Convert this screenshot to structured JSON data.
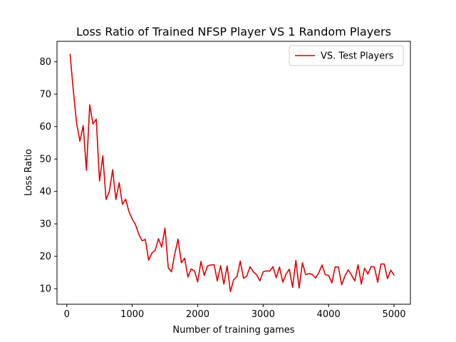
{
  "chart_data": {
    "type": "line",
    "title": "Loss Ratio of Trained NFSP Player VS 1 Random Players",
    "xlabel": "Number of training games",
    "ylabel": "Loss Ratio",
    "xlim": [
      -150,
      5250
    ],
    "ylim": [
      5.2,
      86.3
    ],
    "xticks": [
      0,
      1000,
      2000,
      3000,
      4000,
      5000
    ],
    "yticks": [
      10,
      20,
      30,
      40,
      50,
      60,
      70,
      80
    ],
    "grid": false,
    "legend": {
      "position": "upper right"
    },
    "series": [
      {
        "name": "VS. Test Players",
        "color": "#dd0000",
        "x": [
          50,
          100,
          150,
          200,
          250,
          300,
          350,
          400,
          450,
          500,
          550,
          600,
          650,
          700,
          750,
          800,
          850,
          900,
          950,
          1000,
          1050,
          1100,
          1150,
          1200,
          1250,
          1300,
          1350,
          1400,
          1450,
          1500,
          1550,
          1600,
          1650,
          1700,
          1750,
          1800,
          1850,
          1900,
          1950,
          2000,
          2050,
          2100,
          2150,
          2200,
          2250,
          2300,
          2350,
          2400,
          2450,
          2500,
          2550,
          2600,
          2650,
          2700,
          2750,
          2800,
          2850,
          2900,
          2950,
          3000,
          3050,
          3100,
          3150,
          3200,
          3250,
          3300,
          3350,
          3400,
          3450,
          3500,
          3550,
          3600,
          3650,
          3700,
          3750,
          3800,
          3850,
          3900,
          3950,
          4000,
          4050,
          4100,
          4150,
          4200,
          4250,
          4300,
          4350,
          4400,
          4450,
          4500,
          4550,
          4600,
          4650,
          4700,
          4750,
          4800,
          4850,
          4900,
          4950,
          5000
        ],
        "y": [
          82.3,
          71,
          61,
          55.5,
          60.3,
          46.5,
          66.7,
          60.8,
          62.3,
          43.2,
          51,
          37.5,
          40,
          46.7,
          37.5,
          42.7,
          36,
          37.6,
          33.7,
          31.5,
          29.7,
          26.8,
          24.8,
          25.2,
          18.8,
          21,
          21.8,
          25.4,
          22.8,
          28.7,
          16.5,
          15.2,
          20.8,
          25.3,
          18,
          19.4,
          13.6,
          16.1,
          15.5,
          12.1,
          18.4,
          14.1,
          17,
          17.3,
          17.4,
          12.4,
          17.1,
          11.4,
          17,
          9.1,
          12.8,
          13.7,
          18.5,
          13.2,
          13.9,
          16.8,
          15.2,
          14.3,
          12.4,
          15.2,
          15.5,
          15.4,
          16.8,
          13.4,
          16.7,
          12,
          14.5,
          16,
          10.4,
          18.7,
          10.2,
          18,
          14.3,
          14.7,
          14.4,
          13.3,
          14.9,
          17.3,
          14.3,
          14.1,
          11.8,
          16.7,
          16.7,
          11.2,
          13.9,
          15.8,
          14.2,
          12.4,
          17.4,
          11.4,
          16.3,
          14.5,
          16.8,
          16.7,
          12,
          17.6,
          17.6,
          13.1,
          15.7,
          14.2
        ]
      }
    ]
  }
}
